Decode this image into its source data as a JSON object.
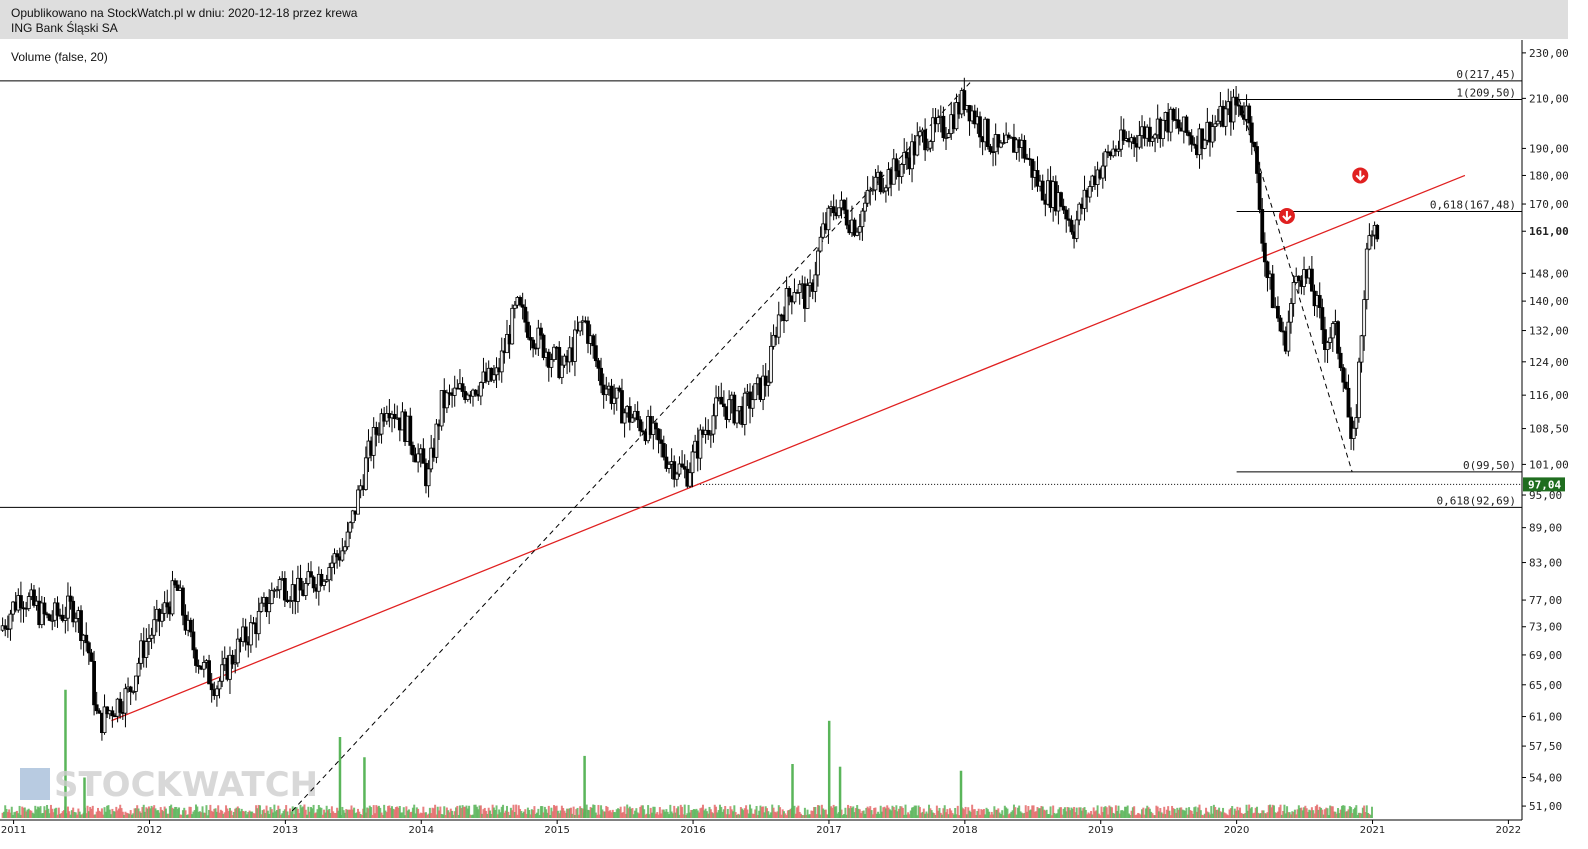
{
  "header": {
    "published": "Opublikowano na StockWatch.pl w dniu: 2020-12-18 przez krewa",
    "instrument": "ING Bank Śląski SA"
  },
  "indicator_label": "Volume (false, 20)",
  "watermark": "STOCKWATCH",
  "chart_data": {
    "type": "candlestick",
    "scale": "log",
    "x_axis": {
      "min_year": 2010.9,
      "max_year": 2022.1,
      "ticks": [
        "2011",
        "2012",
        "2013",
        "2014",
        "2015",
        "2016",
        "2017",
        "2018",
        "2019",
        "2020",
        "2021",
        "2022"
      ]
    },
    "y_axis": {
      "min": 49.6,
      "max": 236.0,
      "ticks": [
        "51,00",
        "54,00",
        "57,50",
        "61,00",
        "65,00",
        "69,00",
        "73,00",
        "77,00",
        "83,00",
        "89,00",
        "95,00",
        "101,00",
        "108,50",
        "116,00",
        "124,00",
        "132,00",
        "140,00",
        "148,00",
        "161,00",
        "170,00",
        "180,00",
        "190,00",
        "210,00",
        "230,00"
      ],
      "highlighted_tick": "161,00",
      "last_price_label": "97,04"
    },
    "price_path": [
      [
        2010.9,
        72.5
      ],
      [
        2011.05,
        78
      ],
      [
        2011.25,
        74
      ],
      [
        2011.45,
        76
      ],
      [
        2011.55,
        70
      ],
      [
        2011.62,
        60
      ],
      [
        2011.72,
        62
      ],
      [
        2011.85,
        64
      ],
      [
        2011.95,
        70
      ],
      [
        2012.1,
        75
      ],
      [
        2012.2,
        79
      ],
      [
        2012.3,
        71
      ],
      [
        2012.4,
        67
      ],
      [
        2012.5,
        65
      ],
      [
        2012.65,
        70
      ],
      [
        2012.8,
        74
      ],
      [
        2012.95,
        80
      ],
      [
        2013.1,
        78
      ],
      [
        2013.3,
        82
      ],
      [
        2013.45,
        86
      ],
      [
        2013.6,
        102
      ],
      [
        2013.75,
        115
      ],
      [
        2013.9,
        108
      ],
      [
        2014.05,
        98
      ],
      [
        2014.15,
        114
      ],
      [
        2014.35,
        118
      ],
      [
        2014.55,
        120
      ],
      [
        2014.7,
        138
      ],
      [
        2014.85,
        130
      ],
      [
        2015.05,
        122
      ],
      [
        2015.2,
        135
      ],
      [
        2015.32,
        120
      ],
      [
        2015.5,
        112
      ],
      [
        2015.65,
        109
      ],
      [
        2015.82,
        102
      ],
      [
        2015.95,
        99
      ],
      [
        2016.08,
        108
      ],
      [
        2016.2,
        114
      ],
      [
        2016.35,
        112
      ],
      [
        2016.55,
        120
      ],
      [
        2016.62,
        135
      ],
      [
        2016.75,
        145
      ],
      [
        2016.85,
        140
      ],
      [
        2016.95,
        160
      ],
      [
        2017.05,
        170
      ],
      [
        2017.2,
        163
      ],
      [
        2017.35,
        178
      ],
      [
        2017.5,
        182
      ],
      [
        2017.7,
        195
      ],
      [
        2017.85,
        198
      ],
      [
        2018.0,
        210
      ],
      [
        2018.1,
        200
      ],
      [
        2018.25,
        188
      ],
      [
        2018.4,
        193
      ],
      [
        2018.55,
        176
      ],
      [
        2018.7,
        172
      ],
      [
        2018.8,
        162
      ],
      [
        2018.95,
        180
      ],
      [
        2019.1,
        190
      ],
      [
        2019.3,
        196
      ],
      [
        2019.5,
        201
      ],
      [
        2019.7,
        193
      ],
      [
        2019.85,
        200
      ],
      [
        2020.0,
        207
      ],
      [
        2020.1,
        204
      ],
      [
        2020.15,
        178
      ],
      [
        2020.22,
        148
      ],
      [
        2020.3,
        136
      ],
      [
        2020.35,
        128
      ],
      [
        2020.45,
        150
      ],
      [
        2020.55,
        144
      ],
      [
        2020.65,
        130
      ],
      [
        2020.72,
        132
      ],
      [
        2020.8,
        120
      ],
      [
        2020.85,
        101
      ],
      [
        2020.9,
        122
      ],
      [
        2020.95,
        150
      ],
      [
        2021.0,
        166
      ],
      [
        2021.05,
        160
      ]
    ],
    "volume_spikes": [
      {
        "year": 2011.38,
        "value": 0.95
      },
      {
        "year": 2011.52,
        "value": 0.3
      },
      {
        "year": 2013.4,
        "value": 0.6
      },
      {
        "year": 2013.58,
        "value": 0.45
      },
      {
        "year": 2015.2,
        "value": 0.46
      },
      {
        "year": 2016.73,
        "value": 0.4
      },
      {
        "year": 2017.0,
        "value": 0.72
      },
      {
        "year": 2017.08,
        "value": 0.38
      },
      {
        "year": 2017.97,
        "value": 0.35
      }
    ],
    "volume_label": "Volume",
    "horizontal_lines": [
      {
        "price": 217.45,
        "label": "0(217,45)",
        "from_year": 2010.9
      },
      {
        "price": 209.5,
        "label": "1(209,50)",
        "from_year": 2020.0
      },
      {
        "price": 167.48,
        "label": "0,618(167,48)",
        "from_year": 2020.0
      },
      {
        "price": 99.5,
        "label": "0(99,50)",
        "from_year": 2020.0
      },
      {
        "price": 92.69,
        "label": "0,618(92,69)",
        "from_year": 2010.9
      }
    ],
    "dotted_line": {
      "price": 97.04,
      "from_year": 2016.03
    },
    "trend_line": {
      "from": [
        2011.72,
        60.5
      ],
      "to": [
        2021.68,
        180
      ],
      "color": "#e02020"
    },
    "dashed_lines": [
      {
        "from": [
          2013.05,
          50.5
        ],
        "to": [
          2018.05,
          217.45
        ]
      },
      {
        "from": [
          2020.02,
          209.5
        ],
        "to": [
          2020.85,
          99.5
        ]
      }
    ],
    "signals": [
      {
        "year": 2020.37,
        "price": 166,
        "direction": "down"
      },
      {
        "year": 2020.91,
        "price": 180,
        "direction": "down"
      }
    ],
    "colors": {
      "up": "#f0f0f0",
      "down": "#000000",
      "volume_up": "#5ab55a",
      "volume_down": "#e46a6a",
      "trend": "#e02020"
    }
  }
}
